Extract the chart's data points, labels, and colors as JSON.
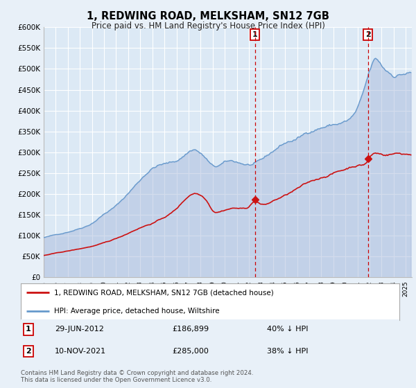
{
  "title": "1, REDWING ROAD, MELKSHAM, SN12 7GB",
  "subtitle": "Price paid vs. HM Land Registry's House Price Index (HPI)",
  "ylim": [
    0,
    600000
  ],
  "yticks": [
    0,
    50000,
    100000,
    150000,
    200000,
    250000,
    300000,
    350000,
    400000,
    450000,
    500000,
    550000,
    600000
  ],
  "ytick_labels": [
    "£0",
    "£50K",
    "£100K",
    "£150K",
    "£200K",
    "£250K",
    "£300K",
    "£350K",
    "£400K",
    "£450K",
    "£500K",
    "£550K",
    "£600K"
  ],
  "xlim_start": 1995.0,
  "xlim_end": 2025.5,
  "background_color": "#e8f0f8",
  "plot_bg_color": "#dce9f5",
  "grid_color": "#ffffff",
  "hpi_color": "#6699cc",
  "hpi_fill_color": "#aabbdd",
  "price_color": "#cc1111",
  "vline_color": "#cc0000",
  "transaction1_x": 2012.496,
  "transaction2_x": 2021.858,
  "transaction1_price": 186899,
  "transaction2_price": 285000,
  "transaction1_date": "29-JUN-2012",
  "transaction2_date": "10-NOV-2021",
  "transaction1_hpi_pct": "40% ↓ HPI",
  "transaction2_hpi_pct": "38% ↓ HPI",
  "legend_label_price": "1, REDWING ROAD, MELKSHAM, SN12 7GB (detached house)",
  "legend_label_hpi": "HPI: Average price, detached house, Wiltshire",
  "footer": "Contains HM Land Registry data © Crown copyright and database right 2024.\nThis data is licensed under the Open Government Licence v3.0."
}
